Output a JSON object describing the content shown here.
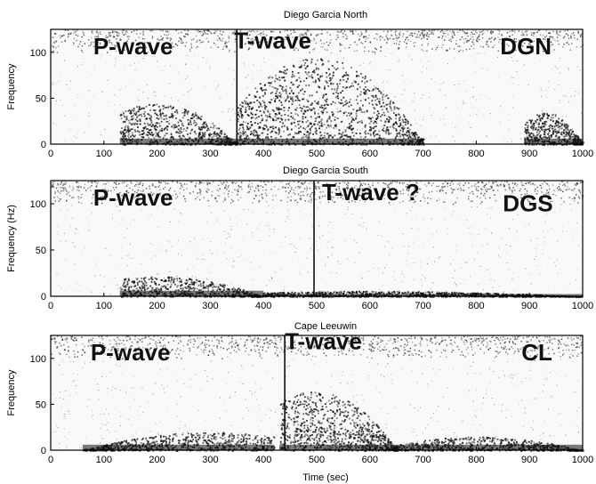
{
  "chart_data": [
    {
      "type": "heatmap",
      "title": "Diego Garcia North",
      "ylabel": "Frequency",
      "xlabel": "",
      "xlim": [
        0,
        1000
      ],
      "ylim": [
        0,
        125
      ],
      "xticks": [
        "0",
        "100",
        "200",
        "300",
        "400",
        "500",
        "600",
        "700",
        "800",
        "900",
        "1000"
      ],
      "yticks": [
        "0",
        "50",
        "100"
      ],
      "annotations": [
        {
          "text": "P-wave",
          "x": 80,
          "y": 98
        },
        {
          "text": "T-wave",
          "x": 345,
          "y": 104
        },
        {
          "text": "DGN",
          "x": 845,
          "y": 98
        }
      ],
      "marker_x": 350,
      "energy_bursts": [
        {
          "x_from": 130,
          "x_to": 350,
          "peak_x": 200,
          "peak_frequency": 45
        },
        {
          "x_from": 350,
          "x_to": 700,
          "peak_x": 500,
          "peak_frequency": 95
        },
        {
          "x_from": 890,
          "x_to": 1000,
          "peak_x": 930,
          "peak_frequency": 35
        }
      ]
    },
    {
      "type": "heatmap",
      "title": "Diego Garcia South",
      "ylabel": "Frequency (Hz)",
      "xlabel": "",
      "xlim": [
        0,
        1000
      ],
      "ylim": [
        0,
        125
      ],
      "xticks": [
        "0",
        "100",
        "200",
        "300",
        "400",
        "500",
        "600",
        "700",
        "800",
        "900",
        "1000"
      ],
      "yticks": [
        "0",
        "50",
        "100"
      ],
      "annotations": [
        {
          "text": "P-wave",
          "x": 80,
          "y": 98
        },
        {
          "text": "T-wave ?",
          "x": 510,
          "y": 104
        },
        {
          "text": "DGS",
          "x": 850,
          "y": 92
        }
      ],
      "marker_x": 495,
      "energy_bursts": [
        {
          "x_from": 130,
          "x_to": 400,
          "peak_x": 200,
          "peak_frequency": 22
        },
        {
          "x_from": 400,
          "x_to": 1000,
          "peak_x": 600,
          "peak_frequency": 6
        }
      ]
    },
    {
      "type": "heatmap",
      "title": "Cape Leeuwin",
      "ylabel": "Frequency",
      "xlabel": "Time (sec)",
      "xlim": [
        0,
        1000
      ],
      "ylim": [
        0,
        125
      ],
      "xticks": [
        "0",
        "100",
        "200",
        "300",
        "400",
        "500",
        "600",
        "700",
        "800",
        "900",
        "1000"
      ],
      "yticks": [
        "0",
        "50",
        "100"
      ],
      "annotations": [
        {
          "text": "P-wave",
          "x": 75,
          "y": 98
        },
        {
          "text": "T-wave",
          "x": 440,
          "y": 110
        },
        {
          "text": "CL",
          "x": 885,
          "y": 98
        }
      ],
      "marker_x": 440,
      "energy_bursts": [
        {
          "x_from": 60,
          "x_to": 420,
          "peak_x": 300,
          "peak_frequency": 20
        },
        {
          "x_from": 430,
          "x_to": 650,
          "peak_x": 500,
          "peak_frequency": 65
        },
        {
          "x_from": 650,
          "x_to": 1000,
          "peak_x": 800,
          "peak_frequency": 15
        }
      ]
    }
  ]
}
